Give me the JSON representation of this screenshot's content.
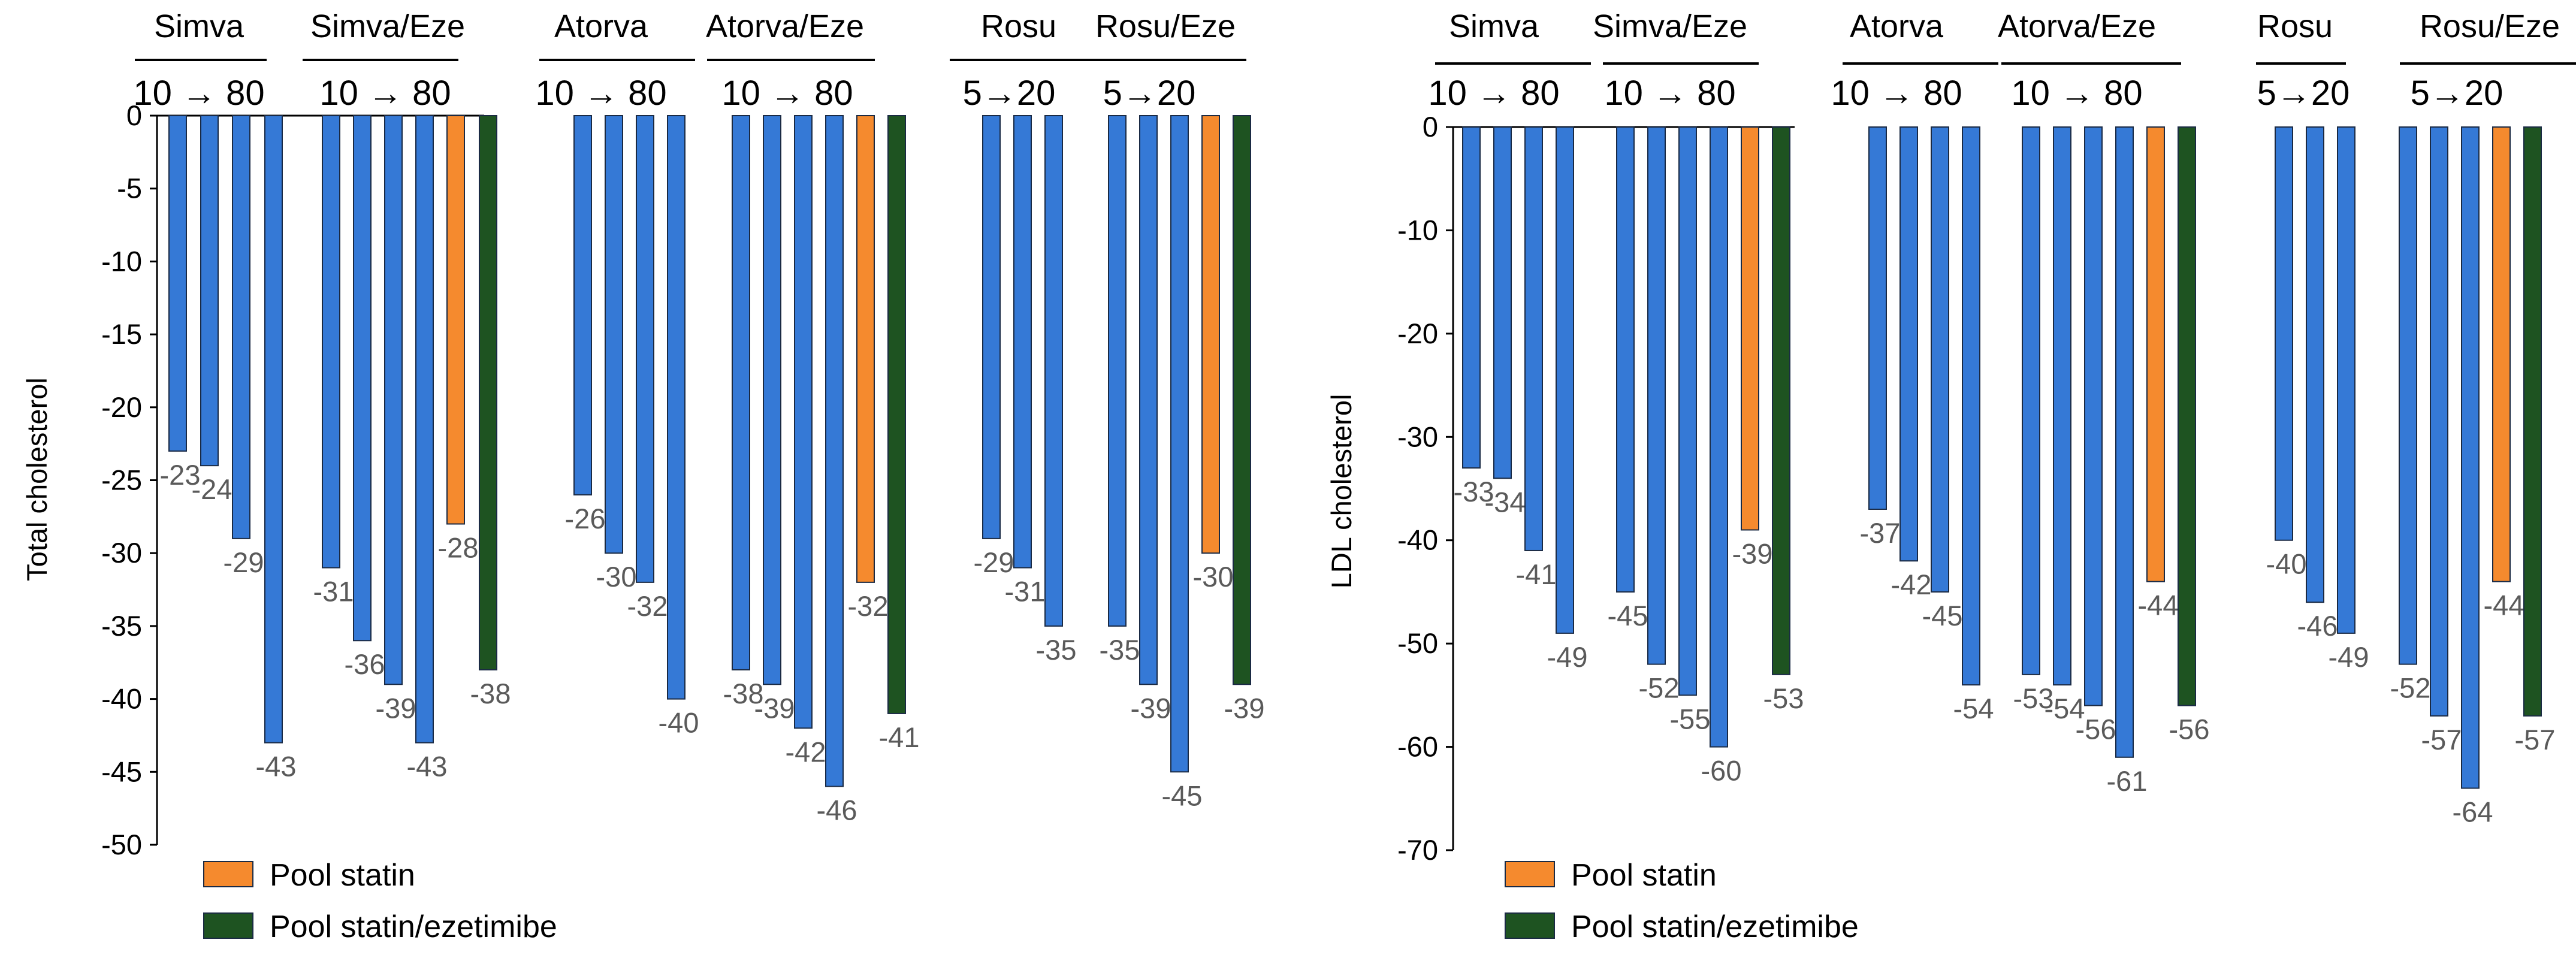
{
  "colors": {
    "regular": "#3579D6",
    "pool_statin": "#F58A2E",
    "pool_combo": "#1E5321",
    "bar_outline": "#1A2A44",
    "axis": "#000000",
    "value_label": "#5A5A5A",
    "text": "#000000"
  },
  "legend": {
    "items": [
      {
        "label": "Pool statin",
        "color": "#F58A2E"
      },
      {
        "label": "Pool statin/ezetimibe",
        "color": "#1E5321"
      }
    ]
  },
  "chart_data": [
    {
      "type": "bar",
      "ylabel": "Total cholesterol",
      "ylim": [
        -50,
        0
      ],
      "yticks": [
        0,
        -5,
        -10,
        -15,
        -20,
        -25,
        -30,
        -35,
        -40,
        -45,
        -50
      ],
      "groups": [
        {
          "name": "Simva",
          "dose": "10 → 80"
        },
        {
          "name": "Simva/Eze",
          "dose": "10 → 80"
        },
        {
          "name": "Atorva",
          "dose": "10 → 80"
        },
        {
          "name": "Atorva/Eze",
          "dose": "10 → 80"
        },
        {
          "name": "Rosu",
          "dose": "5→20"
        },
        {
          "name": "Rosu/Eze",
          "dose": "5→20"
        }
      ],
      "series": [
        {
          "name": "Simva",
          "values": [
            -23,
            -24,
            -29,
            -43
          ]
        },
        {
          "name": "Simva/Eze",
          "values": [
            -31,
            -36,
            -39,
            -43
          ]
        },
        {
          "name": "Pool statin",
          "values": [
            -28
          ]
        },
        {
          "name": "Pool statin/ezetimibe",
          "values": [
            -38
          ]
        },
        {
          "name": "Atorva",
          "values": [
            -26,
            -30,
            -32,
            -40
          ]
        },
        {
          "name": "Atorva/Eze",
          "values": [
            -38,
            -39,
            -42,
            -46
          ]
        },
        {
          "name": "Pool statin",
          "values": [
            -32
          ]
        },
        {
          "name": "Pool statin/ezetimibe",
          "values": [
            -41
          ]
        },
        {
          "name": "Rosu",
          "values": [
            -29,
            -31,
            -35
          ]
        },
        {
          "name": "Rosu/Eze",
          "values": [
            -35,
            -39,
            -45
          ]
        },
        {
          "name": "Pool statin",
          "values": [
            -30
          ]
        },
        {
          "name": "Pool statin/ezetimibe",
          "values": [
            -39
          ]
        }
      ],
      "value_labels": [
        "-23",
        "-24",
        "-29",
        "-43",
        "-31",
        "-36",
        "-39",
        "-43",
        "-28",
        "-38",
        "-26",
        "-30",
        "-32",
        "-40",
        "-38",
        "-39",
        "-42",
        "-46",
        "-32",
        "-41",
        "-29",
        "-31",
        "-35",
        "-35",
        "-39",
        "-45",
        "-30",
        "-39"
      ]
    },
    {
      "type": "bar",
      "ylabel": "LDL cholesterol",
      "ylim": [
        -70,
        0
      ],
      "yticks": [
        0,
        -10,
        -20,
        -30,
        -40,
        -50,
        -60,
        -70
      ],
      "groups": [
        {
          "name": "Simva",
          "dose": "10 → 80"
        },
        {
          "name": "Simva/Eze",
          "dose": "10 → 80"
        },
        {
          "name": "Atorva",
          "dose": "10 → 80"
        },
        {
          "name": "Atorva/Eze",
          "dose": "10 → 80"
        },
        {
          "name": "Rosu",
          "dose": "5→20"
        },
        {
          "name": "Rosu/Eze",
          "dose": "5→20"
        }
      ],
      "series": [
        {
          "name": "Simva",
          "values": [
            -33,
            -34,
            -41,
            -49
          ]
        },
        {
          "name": "Simva/Eze",
          "values": [
            -45,
            -52,
            -55,
            -60
          ]
        },
        {
          "name": "Pool statin",
          "values": [
            -39
          ]
        },
        {
          "name": "Pool statin/ezetimibe",
          "values": [
            -53
          ]
        },
        {
          "name": "Atorva",
          "values": [
            -37,
            -42,
            -45,
            -54
          ]
        },
        {
          "name": "Atorva/Eze",
          "values": [
            -53,
            -54,
            -56,
            -61
          ]
        },
        {
          "name": "Pool statin",
          "values": [
            -44
          ]
        },
        {
          "name": "Pool statin/ezetimibe",
          "values": [
            -56
          ]
        },
        {
          "name": "Rosu",
          "values": [
            -40,
            -46,
            -49
          ]
        },
        {
          "name": "Rosu/Eze",
          "values": [
            -52,
            -57,
            -64
          ]
        },
        {
          "name": "Pool statin",
          "values": [
            -44
          ]
        },
        {
          "name": "Pool statin/ezetimibe",
          "values": [
            -57
          ]
        }
      ],
      "value_labels": [
        "-33",
        "-34",
        "-41",
        "-49",
        "-45",
        "-52",
        "-55",
        "-60",
        "-39",
        "-53",
        "-37",
        "-42",
        "-45",
        "-54",
        "-53",
        "-54",
        "-56",
        "-61",
        "-44",
        "-56",
        "-40",
        "-46",
        "-49",
        "-52",
        "-57",
        "-64",
        "-44",
        "-57"
      ]
    }
  ]
}
